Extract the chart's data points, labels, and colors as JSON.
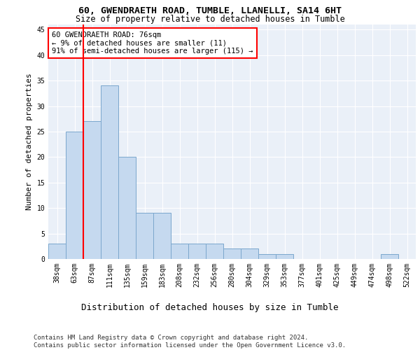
{
  "title1": "60, GWENDRAETH ROAD, TUMBLE, LLANELLI, SA14 6HT",
  "title2": "Size of property relative to detached houses in Tumble",
  "xlabel": "Distribution of detached houses by size in Tumble",
  "ylabel": "Number of detached properties",
  "categories": [
    "38sqm",
    "63sqm",
    "87sqm",
    "111sqm",
    "135sqm",
    "159sqm",
    "183sqm",
    "208sqm",
    "232sqm",
    "256sqm",
    "280sqm",
    "304sqm",
    "329sqm",
    "353sqm",
    "377sqm",
    "401sqm",
    "425sqm",
    "449sqm",
    "474sqm",
    "498sqm",
    "522sqm"
  ],
  "values": [
    3,
    25,
    27,
    34,
    20,
    9,
    9,
    3,
    3,
    3,
    2,
    2,
    1,
    1,
    0,
    0,
    0,
    0,
    0,
    1,
    0
  ],
  "bar_color": "#c5d9ef",
  "bar_edge_color": "#7ba7cd",
  "vline_color": "red",
  "vline_x": 1.5,
  "annotation_text": "60 GWENDRAETH ROAD: 76sqm\n← 9% of detached houses are smaller (11)\n91% of semi-detached houses are larger (115) →",
  "annotation_box_color": "white",
  "annotation_border_color": "red",
  "ylim": [
    0,
    46
  ],
  "yticks": [
    0,
    5,
    10,
    15,
    20,
    25,
    30,
    35,
    40,
    45
  ],
  "footer": "Contains HM Land Registry data © Crown copyright and database right 2024.\nContains public sector information licensed under the Open Government Licence v3.0.",
  "plot_bg_color": "#eaf0f8",
  "title1_fontsize": 9.5,
  "title2_fontsize": 8.5,
  "xlabel_fontsize": 9,
  "ylabel_fontsize": 8,
  "tick_fontsize": 7,
  "annotation_fontsize": 7.5,
  "footer_fontsize": 6.5
}
